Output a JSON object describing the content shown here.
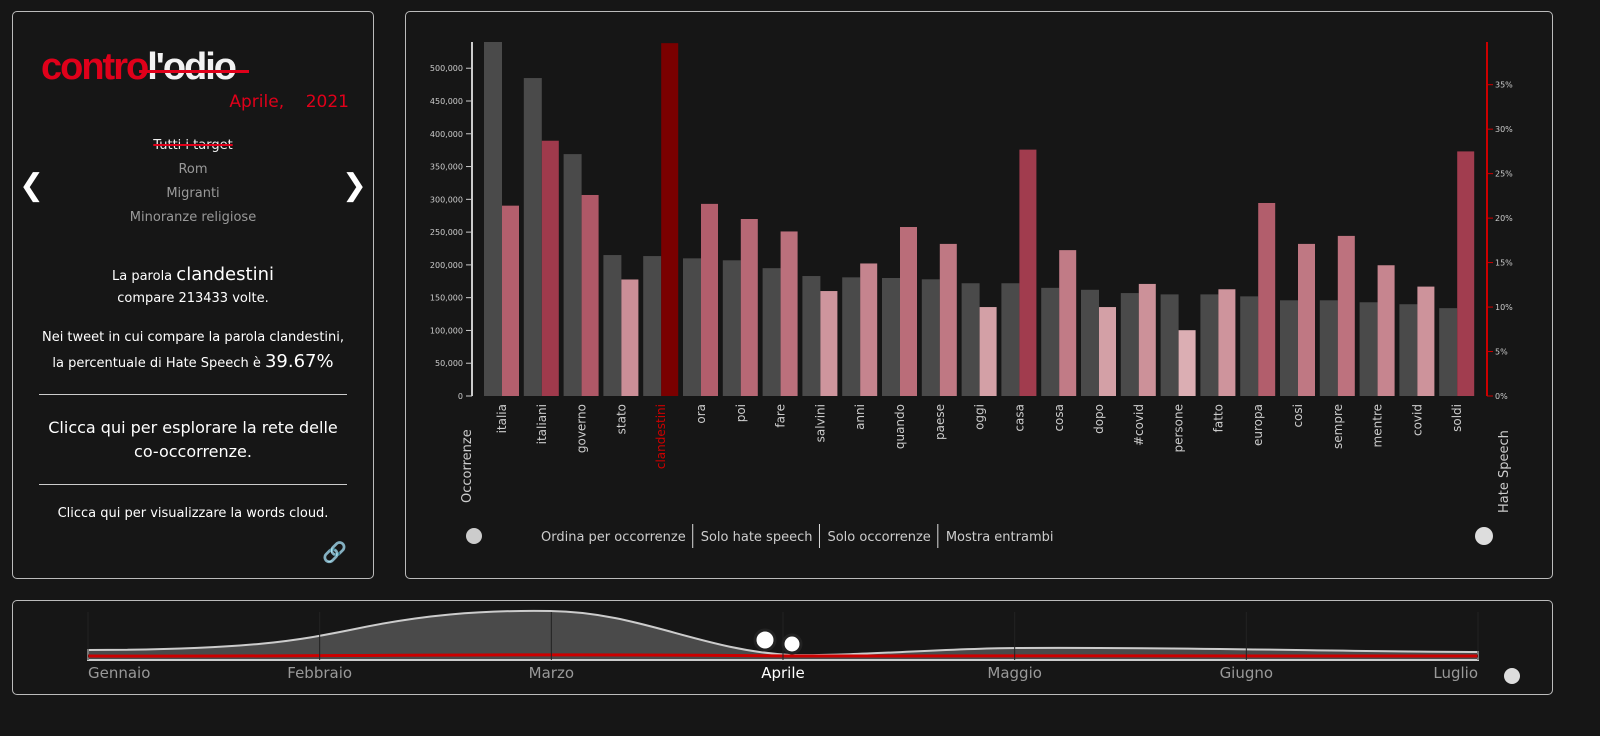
{
  "sidebar": {
    "logo": {
      "word1": "contro",
      "word2": "l'odio",
      "month": "Aprile,",
      "year": "2021"
    },
    "targets": [
      "Tutti i target",
      "Rom",
      "Migranti",
      "Minoranze religiose"
    ],
    "word_intro": "La parola",
    "word": "clandestini",
    "word_count": "compare 213433 volte.",
    "hate_text": "Nei tweet in cui compare la parola clandestini, la percentuale di Hate Speech è",
    "hate_value": "39.67%",
    "network_link": "Clicca qui per esplorare la rete delle co-occorrenze.",
    "cloud_link": "Clicca qui per visualizzare la words cloud."
  },
  "chart_data": {
    "type": "bar",
    "categories": [
      "italia",
      "italiani",
      "governo",
      "stato",
      "clandestini",
      "ora",
      "poi",
      "fare",
      "salvini",
      "anni",
      "quando",
      "paese",
      "oggi",
      "casa",
      "cosa",
      "dopo",
      "#covid",
      "persone",
      "fatto",
      "europa",
      "cosi",
      "sempre",
      "mentre",
      "covid",
      "soldi"
    ],
    "selected": "clandestini",
    "selected_color": "#7a0000",
    "series": [
      {
        "name": "Occorrenze",
        "color": "#4a4a4a",
        "values": [
          540000,
          485000,
          369000,
          215000,
          213433,
          210000,
          207000,
          195000,
          183000,
          181000,
          180000,
          178000,
          172000,
          172000,
          165000,
          162000,
          157000,
          155000,
          155000,
          152000,
          146000,
          146000,
          143000,
          140000,
          134000
        ]
      },
      {
        "name": "Hate Speech",
        "color": "#a03a4c",
        "axis": "y2",
        "values": [
          21.4,
          28.7,
          22.6,
          13.1,
          39.67,
          21.6,
          19.9,
          18.5,
          11.8,
          14.9,
          19.0,
          17.1,
          10.0,
          27.7,
          16.4,
          10.0,
          12.6,
          7.4,
          12.0,
          21.7,
          17.1,
          18.0,
          14.7,
          12.3,
          27.5
        ]
      }
    ],
    "ylim": [
      0,
      540000
    ],
    "yticks": [
      0,
      {
        "value": 50000,
        "label": "50,000"
      },
      {
        "value": 100000,
        "label": "100,000"
      },
      {
        "value": 150000,
        "label": "150,000"
      },
      {
        "value": 200000,
        "label": "200,000"
      },
      {
        "value": 250000,
        "label": "250,000"
      },
      {
        "value": 300000,
        "label": "300,000"
      },
      {
        "value": 350000,
        "label": "350,000"
      },
      {
        "value": 400000,
        "label": "400,000"
      },
      {
        "value": 450000,
        "label": "450,000"
      },
      {
        "value": 500000,
        "label": "500,000"
      }
    ],
    "y2lim": [
      0,
      39.8
    ],
    "y2ticks": [
      {
        "value": 0,
        "label": "0%"
      },
      {
        "value": 5,
        "label": "5%"
      },
      {
        "value": 10,
        "label": "10%"
      },
      {
        "value": 15,
        "label": "15%"
      },
      {
        "value": 20,
        "label": "20%"
      },
      {
        "value": 25,
        "label": "25%"
      },
      {
        "value": 30,
        "label": "30%"
      },
      {
        "value": 35,
        "label": "35%"
      }
    ],
    "ylabel": "Occorrenze",
    "y2label": "Hate Speech",
    "buttons": [
      "Ordina per occorrenze",
      "Solo hate speech",
      "Solo occorrenze",
      "Mostra entrambi"
    ]
  },
  "timeline": {
    "months": [
      "Gennaio",
      "Febbraio",
      "Marzo",
      "Aprile",
      "Maggio",
      "Giugno",
      "Luglio"
    ],
    "selected": "Aprile"
  }
}
